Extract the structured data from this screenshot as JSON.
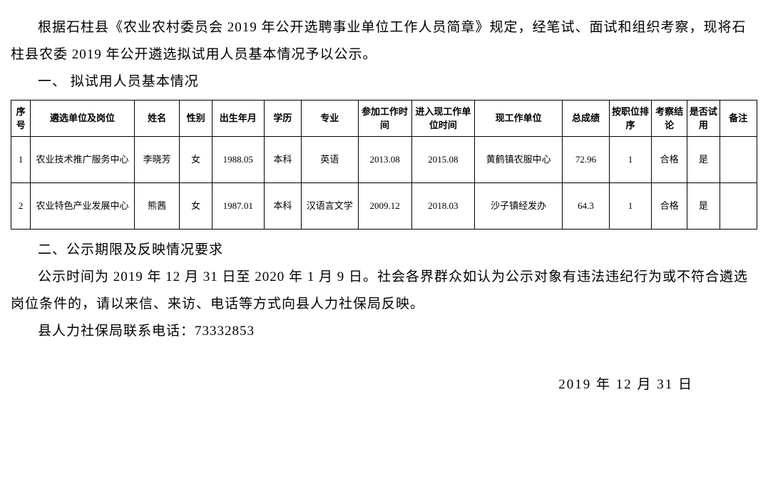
{
  "paragraphs": {
    "intro": "根据石柱县《农业农村委员会 2019 年公开选聘事业单位工作人员简章》规定，经笔试、面试和组织考察，现将石柱县农委 2019 年公开遴选拟试用人员基本情况予以公示。",
    "section1": "一、 拟试用人员基本情况",
    "section2": "二、公示期限及反映情况要求",
    "notice": "公示时间为 2019 年 12 月 31 日至 2020 年 1 月 9 日。社会各界群众如认为公示对象有违法违纪行为或不符合遴选岗位条件的，请以来信、来访、电话等方式向县人力社保局反映。",
    "contact": "县人力社保局联系电话：73332853",
    "date": "2019 年 12 月 31 日"
  },
  "table": {
    "columns": [
      {
        "key": "seq",
        "label": "序号",
        "width_class": "col-seq"
      },
      {
        "key": "unit",
        "label": "遴选单位及岗位",
        "width_class": "col-unit"
      },
      {
        "key": "name",
        "label": "姓名",
        "width_class": "col-name"
      },
      {
        "key": "gender",
        "label": "性别",
        "width_class": "col-gender"
      },
      {
        "key": "birth",
        "label": "出生年月",
        "width_class": "col-birth"
      },
      {
        "key": "edu",
        "label": "学历",
        "width_class": "col-edu"
      },
      {
        "key": "major",
        "label": "专业",
        "width_class": "col-major"
      },
      {
        "key": "work_time",
        "label": "参加工作时间",
        "width_class": "col-work"
      },
      {
        "key": "cur_time",
        "label": "进入现工作单位时间",
        "width_class": "col-cur"
      },
      {
        "key": "cur_unit",
        "label": "现工作单位",
        "width_class": "col-curunit"
      },
      {
        "key": "score",
        "label": "总成绩",
        "width_class": "col-score"
      },
      {
        "key": "rank",
        "label": "按职位排序",
        "width_class": "col-rank"
      },
      {
        "key": "exam",
        "label": "考察结论",
        "width_class": "col-exam"
      },
      {
        "key": "trial",
        "label": "是否试用",
        "width_class": "col-trial"
      },
      {
        "key": "note",
        "label": "备注",
        "width_class": "col-note"
      }
    ],
    "rows": [
      {
        "seq": "1",
        "unit": "农业技术推广服务中心",
        "name": "李晓芳",
        "gender": "女",
        "birth": "1988.05",
        "edu": "本科",
        "major": "英语",
        "work_time": "2013.08",
        "cur_time": "2015.08",
        "cur_unit": "黄鹤镇农服中心",
        "score": "72.96",
        "rank": "1",
        "exam": "合格",
        "trial": "是",
        "note": ""
      },
      {
        "seq": "2",
        "unit": "农业特色产业发展中心",
        "name": "熊茜",
        "gender": "女",
        "birth": "1987.01",
        "edu": "本科",
        "major": "汉语言文学",
        "work_time": "2009.12",
        "cur_time": "2018.03",
        "cur_unit": "沙子镇经发办",
        "score": "64.3",
        "rank": "1",
        "exam": "合格",
        "trial": "是",
        "note": ""
      }
    ],
    "border_color": "#000000",
    "header_fontsize": 13,
    "cell_fontsize": 13,
    "background_color": "#ffffff"
  },
  "style": {
    "body_fontsize": 19,
    "body_color": "#000000",
    "body_bg": "#ffffff",
    "font_family": "SimSun"
  }
}
